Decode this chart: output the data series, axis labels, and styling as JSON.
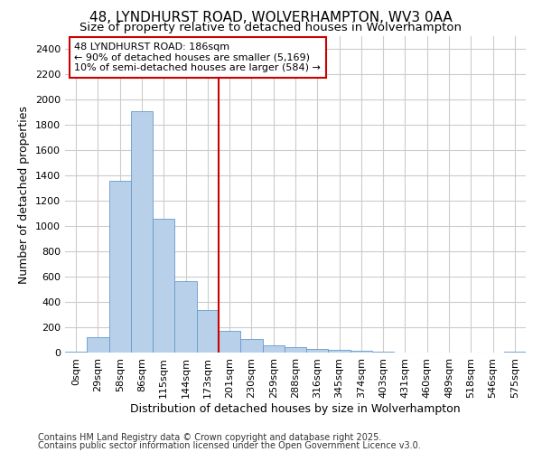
{
  "title_line1": "48, LYNDHURST ROAD, WOLVERHAMPTON, WV3 0AA",
  "title_line2": "Size of property relative to detached houses in Wolverhampton",
  "xlabel": "Distribution of detached houses by size in Wolverhampton",
  "ylabel": "Number of detached properties",
  "footer_line1": "Contains HM Land Registry data © Crown copyright and database right 2025.",
  "footer_line2": "Contains public sector information licensed under the Open Government Licence v3.0.",
  "categories": [
    "0sqm",
    "29sqm",
    "58sqm",
    "86sqm",
    "115sqm",
    "144sqm",
    "173sqm",
    "201sqm",
    "230sqm",
    "259sqm",
    "288sqm",
    "316sqm",
    "345sqm",
    "374sqm",
    "403sqm",
    "431sqm",
    "460sqm",
    "489sqm",
    "518sqm",
    "546sqm",
    "575sqm"
  ],
  "values": [
    10,
    125,
    1355,
    1910,
    1055,
    565,
    335,
    170,
    110,
    60,
    40,
    30,
    25,
    15,
    5,
    3,
    2,
    1,
    1,
    0,
    5
  ],
  "bar_color": "#b8d0ea",
  "bar_edge_color": "#6699cc",
  "red_line_index": 7,
  "annotation_text_line1": "48 LYNDHURST ROAD: 186sqm",
  "annotation_text_line2": "← 90% of detached houses are smaller (5,169)",
  "annotation_text_line3": "10% of semi-detached houses are larger (584) →",
  "annotation_box_facecolor": "#ffffff",
  "annotation_box_edgecolor": "#cc0000",
  "ylim": [
    0,
    2500
  ],
  "yticks": [
    0,
    200,
    400,
    600,
    800,
    1000,
    1200,
    1400,
    1600,
    1800,
    2000,
    2200,
    2400
  ],
  "background_color": "#ffffff",
  "grid_color": "#cccccc",
  "title_fontsize": 11,
  "subtitle_fontsize": 9.5,
  "axis_label_fontsize": 9,
  "tick_fontsize": 8,
  "annotation_fontsize": 8,
  "footer_fontsize": 7
}
